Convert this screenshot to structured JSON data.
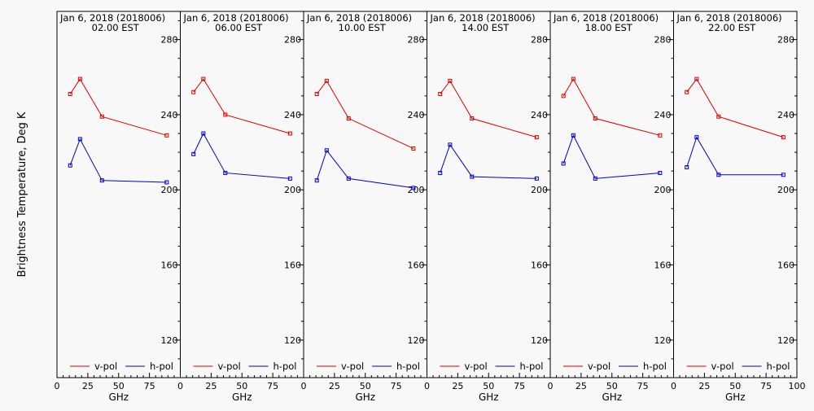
{
  "chart_data": {
    "type": "line",
    "ylabel": "Brightness Temperature, Deg K",
    "xlabel": "GHz",
    "ylim": [
      100,
      295
    ],
    "xlim": [
      0,
      100
    ],
    "yticks": [
      120,
      160,
      200,
      240,
      280
    ],
    "xticks": [
      0,
      25,
      50,
      75
    ],
    "xticks_last_panel": [
      0,
      25,
      50,
      75,
      100
    ],
    "grid": false,
    "legend_position": "bottom",
    "colors": {
      "v-pol": "#dd0000",
      "h-pol": "#0000cc"
    },
    "x": [
      10.7,
      18.7,
      36.5,
      89.0
    ],
    "panels": [
      {
        "title_line1": "Jan  6, 2018 (2018006)",
        "title_line2": "02.00 EST",
        "series": [
          {
            "name": "v-pol",
            "values": [
              251,
              259,
              239,
              229
            ]
          },
          {
            "name": "h-pol",
            "values": [
              213,
              227,
              205,
              204
            ]
          }
        ]
      },
      {
        "title_line1": "Jan  6, 2018 (2018006)",
        "title_line2": "06.00 EST",
        "series": [
          {
            "name": "v-pol",
            "values": [
              252,
              259,
              240,
              230
            ]
          },
          {
            "name": "h-pol",
            "values": [
              219,
              230,
              209,
              206
            ]
          }
        ]
      },
      {
        "title_line1": "Jan  6, 2018 (2018006)",
        "title_line2": "10.00 EST",
        "series": [
          {
            "name": "v-pol",
            "values": [
              251,
              258,
              238,
              222
            ]
          },
          {
            "name": "h-pol",
            "values": [
              205,
              221,
              206,
              201
            ]
          }
        ]
      },
      {
        "title_line1": "Jan  6, 2018 (2018006)",
        "title_line2": "14.00 EST",
        "series": [
          {
            "name": "v-pol",
            "values": [
              251,
              258,
              238,
              228
            ]
          },
          {
            "name": "h-pol",
            "values": [
              209,
              224,
              207,
              206
            ]
          }
        ]
      },
      {
        "title_line1": "Jan  6, 2018 (2018006)",
        "title_line2": "18.00 EST",
        "series": [
          {
            "name": "v-pol",
            "values": [
              250,
              259,
              238,
              229
            ]
          },
          {
            "name": "h-pol",
            "values": [
              214,
              229,
              206,
              209
            ]
          }
        ]
      },
      {
        "title_line1": "Jan  6, 2018 (2018006)",
        "title_line2": "22.00 EST",
        "series": [
          {
            "name": "v-pol",
            "values": [
              252,
              259,
              239,
              228
            ]
          },
          {
            "name": "h-pol",
            "values": [
              212,
              228,
              208,
              208
            ]
          }
        ]
      }
    ]
  }
}
